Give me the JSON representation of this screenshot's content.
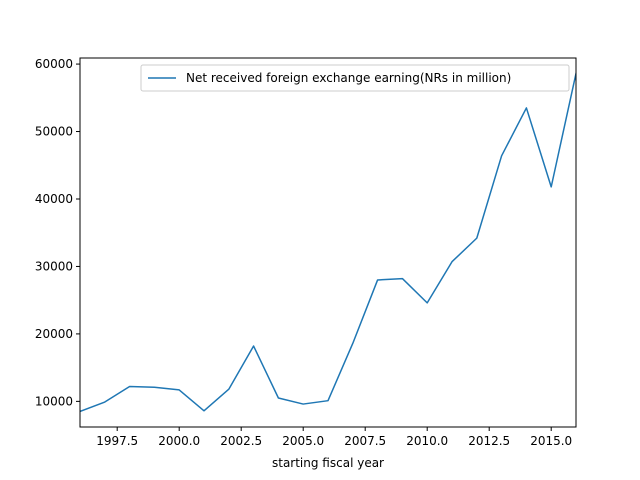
{
  "chart_data": {
    "type": "line",
    "title": "",
    "xlabel": "starting fiscal  year",
    "ylabel": "",
    "xlim": [
      1996,
      2016
    ],
    "ylim": [
      6200,
      60900
    ],
    "x_ticks": [
      1997.5,
      2000.0,
      2002.5,
      2005.0,
      2007.5,
      2010.0,
      2012.5,
      2015.0
    ],
    "x_tick_labels": [
      "1997.5",
      "2000.0",
      "2002.5",
      "2005.0",
      "2007.5",
      "2010.0",
      "2012.5",
      "2015.0"
    ],
    "y_ticks": [
      10000,
      20000,
      30000,
      40000,
      50000,
      60000
    ],
    "y_tick_labels": [
      "10000",
      "20000",
      "30000",
      "40000",
      "50000",
      "60000"
    ],
    "grid": false,
    "legend_position": "top-right",
    "series": [
      {
        "name": "Net received foreign exchange earning(NRs in million)",
        "color": "#1f77b4",
        "x": [
          1996,
          1997,
          1998,
          1999,
          2000,
          2001,
          2002,
          2003,
          2004,
          2005,
          2006,
          2007,
          2008,
          2009,
          2010,
          2011,
          2012,
          2013,
          2014,
          2015,
          2016
        ],
        "y": [
          8500,
          9900,
          12200,
          12100,
          11700,
          8600,
          11800,
          18200,
          10500,
          9600,
          10100,
          18600,
          28000,
          28200,
          24600,
          30700,
          34200,
          46400,
          53500,
          41800,
          58600
        ]
      }
    ]
  }
}
